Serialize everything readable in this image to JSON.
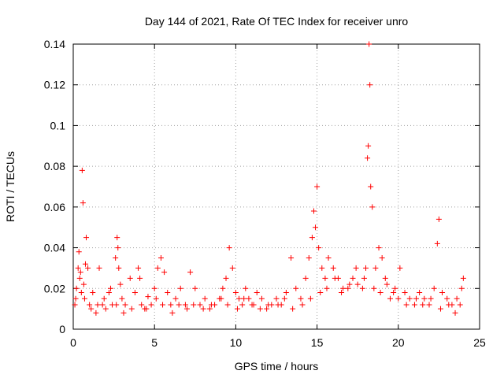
{
  "chart_data": {
    "type": "scatter",
    "title": "Day 144 of 2021, Rate Of TEC Index for receiver unro",
    "xlabel": "GPS time / hours",
    "ylabel": "ROTI / TECUs",
    "xlim": [
      0,
      25
    ],
    "ylim": [
      0,
      0.14
    ],
    "xticks": [
      0,
      5,
      10,
      15,
      20,
      25
    ],
    "yticks": [
      0,
      0.02,
      0.04,
      0.06,
      0.08,
      0.1,
      0.12,
      0.14
    ],
    "grid": true,
    "marker": "+",
    "color": "#ff0000",
    "series": [
      {
        "x": [
          0.1,
          0.2,
          0.3,
          0.35,
          0.4,
          0.5,
          0.55,
          0.6,
          0.65,
          0.7,
          0.8,
          0.9,
          1.0,
          1.2,
          1.4,
          1.6,
          1.8,
          2.0,
          2.2,
          2.4,
          2.6,
          2.7,
          2.75,
          2.8,
          2.9,
          3.0,
          3.2,
          3.5,
          3.8,
          4.0,
          4.2,
          4.4,
          4.6,
          4.8,
          5.0,
          5.2,
          5.4,
          5.6,
          5.8,
          6.0,
          6.3,
          6.6,
          6.9,
          7.2,
          7.5,
          7.8,
          8.1,
          8.4,
          8.7,
          9.0,
          9.2,
          9.4,
          9.6,
          9.8,
          10.0,
          10.2,
          10.4,
          10.6,
          10.8,
          11.0,
          11.3,
          11.6,
          11.9,
          12.2,
          12.5,
          12.8,
          13.1,
          13.4,
          13.7,
          14.0,
          14.3,
          14.5,
          14.7,
          14.8,
          14.9,
          15.0,
          15.1,
          15.3,
          15.5,
          15.7,
          16.0,
          16.3,
          16.6,
          16.9,
          17.2,
          17.5,
          17.8,
          18.0,
          18.1,
          18.15,
          18.2,
          18.25,
          18.3,
          18.4,
          18.6,
          18.8,
          19.0,
          19.2,
          19.5,
          19.8,
          20.1,
          20.4,
          20.7,
          21.0,
          21.3,
          21.6,
          21.9,
          22.2,
          22.4,
          22.5,
          22.7,
          23.0,
          23.3,
          23.6,
          23.9,
          24.0,
          0.15,
          0.45,
          0.75,
          1.1,
          1.5,
          1.9,
          2.3,
          2.65,
          3.1,
          3.6,
          4.1,
          4.5,
          5.1,
          5.5,
          6.1,
          6.5,
          7.0,
          7.4,
          8.0,
          8.5,
          9.1,
          9.5,
          10.1,
          10.5,
          11.1,
          11.5,
          12.0,
          12.6,
          13.0,
          13.5,
          14.1,
          14.6,
          15.2,
          15.6,
          16.1,
          16.5,
          17.0,
          17.4,
          17.9,
          18.5,
          18.9,
          19.3,
          19.7,
          20.0,
          20.5,
          21.1,
          21.5,
          22.0,
          22.6,
          23.1,
          23.5,
          23.8
        ],
        "y": [
          0.012,
          0.02,
          0.03,
          0.038,
          0.025,
          0.018,
          0.078,
          0.062,
          0.022,
          0.015,
          0.045,
          0.03,
          0.012,
          0.018,
          0.008,
          0.03,
          0.012,
          0.01,
          0.018,
          0.012,
          0.035,
          0.045,
          0.04,
          0.03,
          0.022,
          0.015,
          0.012,
          0.025,
          0.018,
          0.03,
          0.012,
          0.01,
          0.016,
          0.012,
          0.02,
          0.03,
          0.035,
          0.028,
          0.018,
          0.012,
          0.015,
          0.02,
          0.012,
          0.028,
          0.02,
          0.012,
          0.015,
          0.01,
          0.012,
          0.015,
          0.02,
          0.025,
          0.04,
          0.03,
          0.018,
          0.015,
          0.012,
          0.02,
          0.015,
          0.012,
          0.018,
          0.015,
          0.01,
          0.012,
          0.015,
          0.012,
          0.018,
          0.035,
          0.02,
          0.015,
          0.025,
          0.035,
          0.045,
          0.058,
          0.05,
          0.07,
          0.04,
          0.03,
          0.025,
          0.035,
          0.03,
          0.025,
          0.02,
          0.02,
          0.025,
          0.022,
          0.02,
          0.03,
          0.084,
          0.09,
          0.14,
          0.12,
          0.07,
          0.06,
          0.03,
          0.04,
          0.035,
          0.025,
          0.015,
          0.02,
          0.03,
          0.018,
          0.015,
          0.012,
          0.018,
          0.015,
          0.012,
          0.02,
          0.042,
          0.054,
          0.018,
          0.015,
          0.012,
          0.015,
          0.02,
          0.025,
          0.015,
          0.028,
          0.032,
          0.01,
          0.012,
          0.015,
          0.02,
          0.012,
          0.008,
          0.01,
          0.025,
          0.01,
          0.015,
          0.012,
          0.008,
          0.012,
          0.01,
          0.012,
          0.01,
          0.012,
          0.015,
          0.012,
          0.01,
          0.015,
          0.012,
          0.01,
          0.012,
          0.012,
          0.015,
          0.01,
          0.012,
          0.015,
          0.018,
          0.02,
          0.025,
          0.018,
          0.022,
          0.03,
          0.025,
          0.02,
          0.018,
          0.022,
          0.018,
          0.015,
          0.012,
          0.015,
          0.012,
          0.015,
          0.01,
          0.012,
          0.008,
          0.012
        ]
      }
    ]
  }
}
